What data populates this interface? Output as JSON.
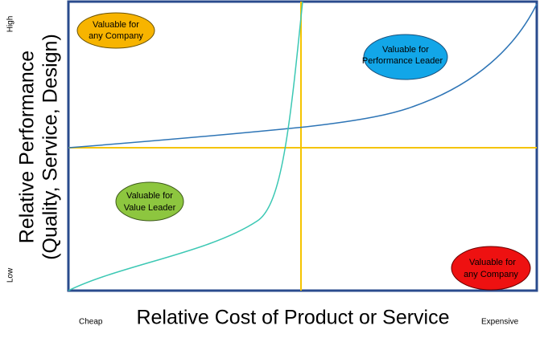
{
  "x_axis": {
    "title": "Relative Cost of Product or Service",
    "low": "Cheap",
    "high": "Expensive"
  },
  "y_axis": {
    "title_lines": [
      "Relative Performance",
      "(Quality, Service, Design)"
    ],
    "low": "Low",
    "high": "High"
  },
  "quadrants": [
    {
      "lines": [
        "Valuable for",
        "any Company"
      ]
    },
    {
      "lines": [
        "Valuable for",
        "Performance Leader"
      ]
    },
    {
      "lines": [
        "Valuable for",
        "Value Leader"
      ]
    },
    {
      "lines": [
        "Valuable for",
        "any Company"
      ]
    }
  ]
}
